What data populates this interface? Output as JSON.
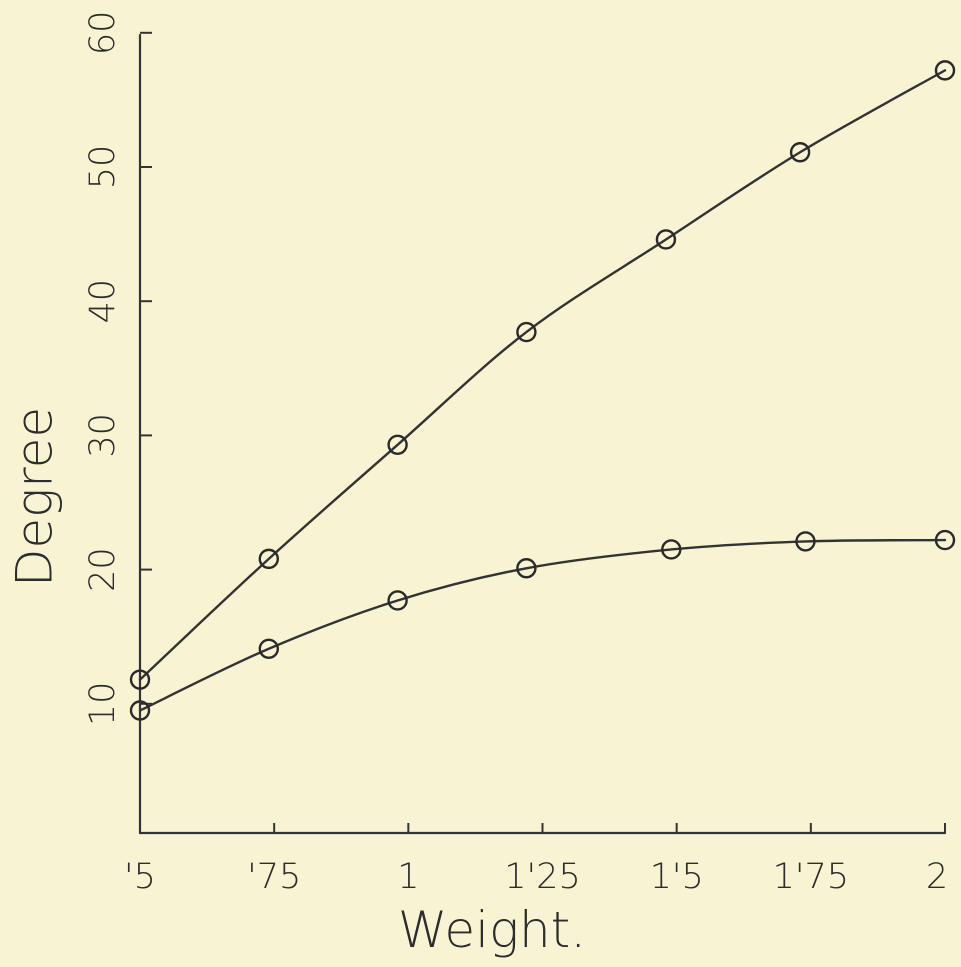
{
  "chart_data": {
    "type": "line",
    "xlabel": "Weight.",
    "ylabel": "Degree",
    "x": [
      0.5,
      0.75,
      1,
      1.25,
      1.5,
      1.75,
      2
    ],
    "x_tick_labels": [
      "'5",
      "'75",
      "1",
      "1'25",
      "1'5",
      "1'75",
      "2"
    ],
    "y_ticks": [
      10,
      20,
      30,
      40,
      50,
      60
    ],
    "y_tick_labels": [
      "10",
      "20",
      "30",
      "40",
      "50",
      "60"
    ],
    "xlim": [
      0.5,
      2
    ],
    "ylim": [
      0,
      62
    ],
    "grid": false,
    "series": [
      {
        "x": [
          0.5,
          0.74,
          0.98,
          1.22,
          1.48,
          1.73,
          2
        ],
        "values": [
          11.8,
          20.8,
          29.3,
          37.7,
          44.6,
          51.1,
          57.2
        ]
      },
      {
        "x": [
          0.5,
          0.74,
          0.98,
          1.22,
          1.49,
          1.74,
          2
        ],
        "values": [
          9.5,
          14.1,
          17.7,
          20.1,
          21.5,
          22.1,
          22.2
        ]
      }
    ]
  }
}
